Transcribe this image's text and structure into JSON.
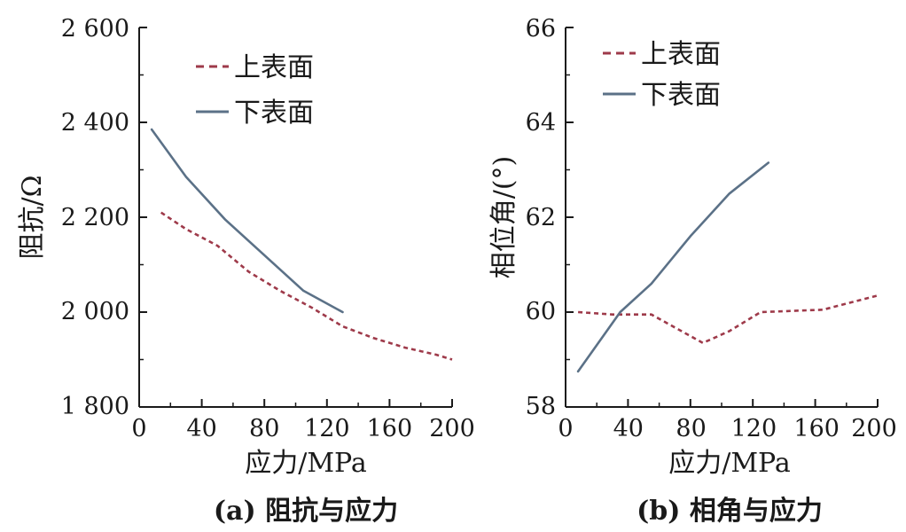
{
  "chart_data": [
    {
      "type": "line",
      "caption": "(a) 阻抗与应力",
      "xlabel": "应力/MPa",
      "ylabel": "阻抗/Ω",
      "xlim": [
        0,
        200
      ],
      "ylim": [
        1800,
        2600
      ],
      "xticks": [
        "0",
        "40",
        "80",
        "120",
        "160",
        "200"
      ],
      "yticks": [
        "1 800",
        "2 000",
        "2 200",
        "2 400",
        "2 600"
      ],
      "legend_position": "top-right",
      "series": [
        {
          "name": "上表面",
          "style": "dashed",
          "color": "#9e3a4a",
          "x": [
            14,
            30,
            50,
            70,
            90,
            110,
            130,
            150,
            170,
            190,
            200
          ],
          "y": [
            2210,
            2175,
            2140,
            2085,
            2045,
            2010,
            1970,
            1945,
            1925,
            1910,
            1900
          ]
        },
        {
          "name": "下表面",
          "style": "solid",
          "color": "#5b7187",
          "x": [
            8,
            30,
            55,
            80,
            105,
            130
          ],
          "y": [
            2385,
            2285,
            2195,
            2120,
            2045,
            2000
          ]
        }
      ]
    },
    {
      "type": "line",
      "caption": "(b) 相角与应力",
      "xlabel": "应力/MPa",
      "ylabel": "相位角/(°)",
      "xlim": [
        0,
        200
      ],
      "ylim": [
        58,
        66
      ],
      "xticks": [
        "0",
        "40",
        "80",
        "120",
        "160",
        "200"
      ],
      "yticks": [
        "58",
        "60",
        "62",
        "64",
        "66"
      ],
      "legend_position": "top-right",
      "series": [
        {
          "name": "上表面",
          "style": "dashed",
          "color": "#9e3a4a",
          "x": [
            8,
            30,
            55,
            88,
            105,
            125,
            165,
            200
          ],
          "y": [
            60.0,
            59.95,
            59.95,
            59.35,
            59.6,
            60.0,
            60.05,
            60.35
          ]
        },
        {
          "name": "下表面",
          "style": "solid",
          "color": "#5b7187",
          "x": [
            8,
            35,
            55,
            80,
            105,
            130
          ],
          "y": [
            58.75,
            60.0,
            60.6,
            61.6,
            62.5,
            63.15
          ]
        }
      ]
    }
  ]
}
